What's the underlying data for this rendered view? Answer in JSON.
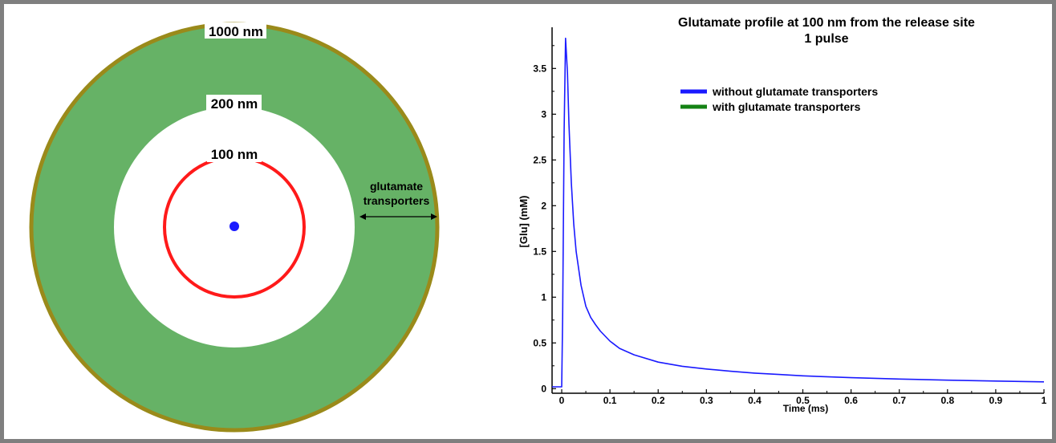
{
  "diagram": {
    "label_outer": "1000 nm",
    "label_mid": "200 nm",
    "label_inner": "100 nm",
    "transporters_line1": "glutamate",
    "transporters_line2": "transporters",
    "colors": {
      "annulus": "#66b266",
      "outer_ring": "#9a8a1a",
      "inner_circle": "#ff1a1a",
      "release_site": "#1a1aff"
    }
  },
  "chart_data": {
    "type": "line",
    "title_line1": "Glutamate profile at 100 nm from the release site",
    "title_line2": "1 pulse",
    "xlabel": "Time (ms)",
    "ylabel": "[Glu] (mM)",
    "xlim": [
      -0.02,
      1.0
    ],
    "ylim": [
      -0.05,
      3.95
    ],
    "xticks": [
      "0",
      "0.1",
      "0.2",
      "0.3",
      "0.4",
      "0.5",
      "0.6",
      "0.7",
      "0.8",
      "0.9",
      "1"
    ],
    "yticks": [
      "0",
      "0.5",
      "1",
      "1.5",
      "2",
      "2.5",
      "3",
      "3.5"
    ],
    "legend_position": "upper-middle",
    "series": [
      {
        "name": "without glutamate transporters",
        "color": "#1a1aff",
        "x": [
          -0.02,
          0.0,
          0.002,
          0.005,
          0.008,
          0.012,
          0.015,
          0.02,
          0.025,
          0.03,
          0.04,
          0.05,
          0.06,
          0.07,
          0.08,
          0.1,
          0.12,
          0.15,
          0.2,
          0.25,
          0.3,
          0.35,
          0.4,
          0.45,
          0.5,
          0.6,
          0.7,
          0.8,
          0.9,
          1.0
        ],
        "y": [
          0.02,
          0.02,
          0.8,
          2.8,
          3.83,
          3.45,
          2.9,
          2.25,
          1.8,
          1.5,
          1.13,
          0.9,
          0.78,
          0.7,
          0.63,
          0.52,
          0.44,
          0.37,
          0.29,
          0.245,
          0.215,
          0.19,
          0.17,
          0.155,
          0.14,
          0.12,
          0.105,
          0.093,
          0.083,
          0.075
        ]
      },
      {
        "name": "with glutamate transporters",
        "color": "#148214",
        "x": [],
        "y": []
      }
    ]
  }
}
